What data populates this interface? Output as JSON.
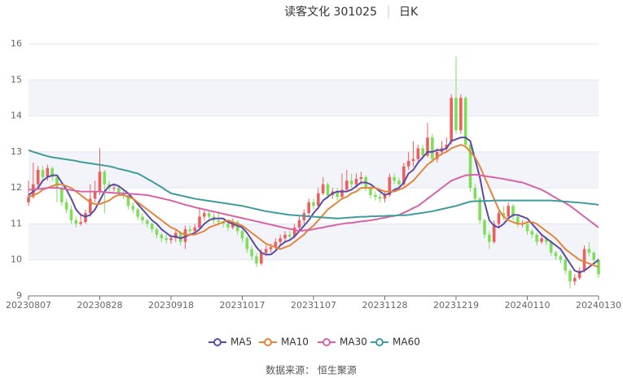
{
  "chart_data": {
    "type": "candlestick",
    "title": "读客文化 301025",
    "subtitle": "日K",
    "source": "数据来源： 恒生聚源",
    "ylim": [
      9,
      16
    ],
    "yticks": [
      9,
      10,
      11,
      12,
      13,
      14,
      15,
      16
    ],
    "up_color": "#ec5f5f",
    "down_color": "#7ddf57",
    "categories": [
      "20230807",
      null,
      null,
      null,
      null,
      null,
      null,
      null,
      null,
      null,
      null,
      null,
      null,
      null,
      null,
      "20230828",
      null,
      null,
      null,
      null,
      null,
      null,
      null,
      null,
      null,
      null,
      null,
      null,
      null,
      null,
      "20230918",
      null,
      null,
      null,
      null,
      null,
      null,
      null,
      null,
      null,
      null,
      null,
      null,
      null,
      null,
      "20231017",
      null,
      null,
      null,
      null,
      null,
      null,
      null,
      null,
      null,
      null,
      null,
      null,
      null,
      null,
      "20231107",
      null,
      null,
      null,
      null,
      null,
      null,
      null,
      null,
      null,
      null,
      null,
      null,
      null,
      null,
      "20231128",
      null,
      null,
      null,
      null,
      null,
      null,
      null,
      null,
      null,
      null,
      null,
      null,
      null,
      null,
      "20231219",
      null,
      null,
      null,
      null,
      null,
      null,
      null,
      null,
      null,
      null,
      null,
      null,
      null,
      null,
      "20240110",
      null,
      null,
      null,
      null,
      null,
      null,
      null,
      null,
      null,
      null,
      null,
      null,
      null,
      null,
      "20240130"
    ],
    "candles": [
      [
        11.6,
        11.75,
        11.5,
        12.2
      ],
      [
        11.75,
        12.1,
        11.7,
        12.7
      ],
      [
        12.1,
        12.5,
        12.0,
        12.6
      ],
      [
        12.5,
        12.3,
        12.2,
        12.6
      ],
      [
        12.3,
        12.55,
        12.2,
        12.65
      ],
      [
        12.55,
        12.3,
        12.2,
        12.6
      ],
      [
        12.3,
        12.0,
        11.6,
        12.35
      ],
      [
        12.0,
        11.6,
        11.5,
        12.05
      ],
      [
        11.6,
        11.4,
        11.3,
        11.7
      ],
      [
        11.4,
        11.1,
        11.0,
        11.5
      ],
      [
        11.1,
        11.0,
        10.9,
        11.2
      ],
      [
        11.0,
        11.05,
        10.95,
        11.3
      ],
      [
        11.05,
        11.3,
        11.0,
        11.4
      ],
      [
        11.3,
        11.7,
        11.2,
        12.1
      ],
      [
        11.7,
        11.9,
        11.6,
        12.2
      ],
      [
        11.9,
        12.45,
        11.8,
        13.1
      ],
      [
        12.45,
        12.1,
        11.3,
        12.5
      ],
      [
        12.1,
        12.0,
        11.9,
        12.2
      ],
      [
        12.0,
        12.0,
        11.9,
        12.1
      ],
      [
        12.0,
        11.85,
        11.8,
        12.05
      ],
      [
        11.85,
        11.8,
        11.7,
        11.95
      ],
      [
        11.8,
        11.5,
        11.4,
        11.85
      ],
      [
        11.5,
        11.4,
        11.3,
        11.6
      ],
      [
        11.4,
        11.2,
        11.1,
        11.45
      ],
      [
        11.2,
        11.1,
        11.0,
        11.3
      ],
      [
        11.1,
        11.0,
        10.9,
        11.15
      ],
      [
        11.0,
        10.85,
        10.75,
        11.05
      ],
      [
        10.85,
        10.7,
        10.6,
        10.9
      ],
      [
        10.7,
        10.6,
        10.5,
        10.75
      ],
      [
        10.6,
        10.55,
        10.45,
        10.7
      ],
      [
        10.55,
        10.6,
        10.45,
        10.7
      ],
      [
        10.6,
        10.75,
        10.5,
        10.85
      ],
      [
        10.75,
        10.5,
        10.4,
        10.8
      ],
      [
        10.5,
        10.85,
        10.3,
        10.95
      ],
      [
        10.85,
        10.8,
        10.7,
        10.95
      ],
      [
        10.8,
        10.9,
        10.75,
        11.0
      ],
      [
        10.9,
        11.2,
        10.85,
        11.45
      ],
      [
        11.2,
        11.3,
        11.1,
        11.4
      ],
      [
        11.3,
        11.2,
        11.05,
        11.35
      ],
      [
        11.2,
        11.1,
        11.0,
        11.3
      ],
      [
        11.1,
        11.05,
        10.95,
        11.35
      ],
      [
        11.05,
        11.0,
        10.9,
        11.1
      ],
      [
        11.0,
        10.9,
        10.8,
        11.05
      ],
      [
        10.9,
        11.05,
        10.85,
        11.15
      ],
      [
        11.05,
        10.8,
        10.7,
        11.1
      ],
      [
        10.8,
        10.6,
        10.5,
        10.85
      ],
      [
        10.6,
        10.3,
        10.2,
        10.65
      ],
      [
        10.3,
        10.1,
        10.0,
        10.4
      ],
      [
        10.1,
        9.9,
        9.8,
        10.2
      ],
      [
        9.9,
        10.2,
        9.85,
        10.3
      ],
      [
        10.2,
        10.3,
        10.1,
        10.4
      ],
      [
        10.3,
        10.35,
        10.2,
        10.45
      ],
      [
        10.35,
        10.5,
        10.3,
        10.6
      ],
      [
        10.5,
        10.6,
        10.4,
        10.7
      ],
      [
        10.6,
        10.7,
        10.5,
        10.8
      ],
      [
        10.7,
        10.65,
        10.55,
        10.8
      ],
      [
        10.65,
        10.9,
        10.6,
        11.0
      ],
      [
        10.9,
        11.1,
        10.8,
        11.2
      ],
      [
        11.1,
        11.3,
        11.0,
        11.4
      ],
      [
        11.3,
        11.6,
        11.2,
        11.7
      ],
      [
        11.6,
        11.5,
        11.4,
        11.7
      ],
      [
        11.5,
        11.85,
        11.4,
        12.0
      ],
      [
        11.85,
        12.1,
        11.8,
        12.3
      ],
      [
        12.1,
        11.8,
        11.7,
        12.15
      ],
      [
        11.8,
        11.9,
        11.7,
        12.0
      ],
      [
        11.9,
        11.75,
        11.65,
        12.0
      ],
      [
        11.75,
        11.95,
        11.7,
        12.4
      ],
      [
        11.95,
        12.2,
        11.9,
        12.5
      ],
      [
        12.2,
        12.1,
        12.0,
        12.4
      ],
      [
        12.1,
        12.25,
        12.0,
        12.4
      ],
      [
        12.25,
        12.3,
        12.1,
        12.45
      ],
      [
        12.3,
        12.0,
        11.9,
        12.35
      ],
      [
        12.0,
        11.8,
        11.7,
        12.05
      ],
      [
        11.8,
        11.75,
        11.65,
        11.9
      ],
      [
        11.75,
        11.7,
        11.6,
        11.85
      ],
      [
        11.7,
        11.8,
        11.6,
        11.9
      ],
      [
        11.8,
        12.3,
        11.75,
        12.4
      ],
      [
        12.3,
        12.2,
        12.1,
        12.4
      ],
      [
        12.2,
        12.1,
        12.0,
        12.3
      ],
      [
        12.1,
        12.6,
        12.05,
        12.7
      ],
      [
        12.6,
        12.75,
        12.5,
        13.0
      ],
      [
        12.75,
        12.8,
        12.6,
        13.3
      ],
      [
        12.8,
        13.1,
        12.7,
        13.2
      ],
      [
        13.1,
        12.9,
        12.8,
        13.2
      ],
      [
        12.9,
        13.4,
        12.85,
        13.8
      ],
      [
        13.4,
        12.8,
        12.7,
        13.5
      ],
      [
        12.8,
        13.0,
        12.7,
        13.1
      ],
      [
        13.0,
        13.1,
        12.9,
        13.3
      ],
      [
        13.1,
        13.2,
        13.0,
        13.4
      ],
      [
        13.3,
        14.5,
        13.2,
        14.6
      ],
      [
        14.5,
        13.6,
        13.5,
        15.65
      ],
      [
        13.6,
        14.5,
        13.5,
        14.6
      ],
      [
        14.5,
        13.2,
        13.1,
        14.55
      ],
      [
        13.2,
        12.0,
        11.9,
        13.3
      ],
      [
        12.0,
        11.7,
        11.6,
        12.1
      ],
      [
        11.7,
        11.1,
        11.0,
        11.75
      ],
      [
        11.1,
        10.7,
        10.6,
        11.15
      ],
      [
        10.7,
        10.5,
        10.3,
        10.8
      ],
      [
        10.5,
        11.0,
        10.45,
        11.1
      ],
      [
        11.0,
        11.3,
        10.9,
        11.4
      ],
      [
        11.3,
        11.2,
        11.1,
        11.5
      ],
      [
        11.2,
        11.5,
        11.15,
        11.6
      ],
      [
        11.5,
        11.2,
        11.1,
        11.55
      ],
      [
        11.2,
        11.0,
        10.9,
        11.25
      ],
      [
        11.0,
        11.0,
        10.9,
        11.1
      ],
      [
        11.0,
        10.8,
        10.7,
        11.05
      ],
      [
        10.8,
        10.7,
        10.6,
        10.85
      ],
      [
        10.7,
        10.5,
        10.4,
        10.75
      ],
      [
        10.5,
        10.6,
        10.45,
        10.7
      ],
      [
        10.6,
        10.5,
        10.4,
        10.65
      ],
      [
        10.5,
        10.2,
        10.1,
        10.55
      ],
      [
        10.2,
        10.1,
        10.0,
        10.25
      ],
      [
        10.1,
        10.0,
        9.9,
        10.15
      ],
      [
        10.0,
        9.7,
        9.6,
        10.05
      ],
      [
        9.7,
        9.4,
        9.2,
        9.75
      ],
      [
        9.4,
        9.5,
        9.3,
        9.6
      ],
      [
        9.5,
        9.7,
        9.45,
        9.8
      ],
      [
        9.7,
        10.3,
        9.65,
        10.4
      ],
      [
        10.3,
        10.2,
        10.1,
        10.5
      ],
      [
        10.2,
        10.0,
        9.9,
        10.25
      ],
      [
        10.0,
        9.6,
        9.5,
        10.05
      ]
    ],
    "series": [
      {
        "name": "MA5",
        "color": "#5e4aa6",
        "values": [
          11.8,
          11.9,
          12.0,
          12.2,
          12.3,
          12.35,
          12.35,
          12.15,
          11.95,
          11.7,
          11.4,
          11.25,
          11.2,
          11.25,
          11.4,
          11.65,
          11.9,
          12.05,
          12.1,
          12.05,
          11.95,
          11.85,
          11.7,
          11.55,
          11.4,
          11.25,
          11.1,
          11.0,
          10.85,
          10.75,
          10.65,
          10.65,
          10.6,
          10.65,
          10.7,
          10.75,
          10.85,
          11.0,
          11.1,
          11.15,
          11.15,
          11.15,
          11.05,
          11.0,
          10.95,
          10.9,
          10.75,
          10.55,
          10.35,
          10.2,
          10.15,
          10.15,
          10.25,
          10.4,
          10.5,
          10.55,
          10.65,
          10.8,
          10.95,
          11.1,
          11.3,
          11.45,
          11.65,
          11.75,
          11.85,
          11.9,
          11.9,
          11.9,
          11.95,
          12.05,
          12.15,
          12.15,
          12.1,
          12.0,
          11.9,
          11.8,
          11.85,
          11.95,
          12.0,
          12.15,
          12.4,
          12.5,
          12.7,
          12.85,
          13.0,
          13.0,
          13.05,
          13.05,
          13.1,
          13.3,
          13.35,
          13.4,
          13.4,
          13.3,
          12.8,
          12.3,
          11.6,
          11.1,
          10.95,
          10.9,
          11.0,
          11.15,
          11.25,
          11.25,
          11.2,
          11.15,
          11.0,
          10.85,
          10.7,
          10.6,
          10.5,
          10.4,
          10.3,
          10.1,
          9.9,
          9.7,
          9.65,
          9.7,
          9.8,
          9.9,
          10.0
        ]
      },
      {
        "name": "MA10",
        "color": "#e5843c",
        "values": [
          11.75,
          11.8,
          11.85,
          11.95,
          12.0,
          12.05,
          12.1,
          12.1,
          12.05,
          12.0,
          11.9,
          11.8,
          11.7,
          11.6,
          11.55,
          11.55,
          11.6,
          11.65,
          11.75,
          11.8,
          11.8,
          11.75,
          11.7,
          11.6,
          11.5,
          11.4,
          11.3,
          11.2,
          11.1,
          11.0,
          10.9,
          10.85,
          10.75,
          10.7,
          10.7,
          10.7,
          10.75,
          10.8,
          10.9,
          10.95,
          11.0,
          11.05,
          11.1,
          11.05,
          11.0,
          10.95,
          10.85,
          10.75,
          10.65,
          10.55,
          10.45,
          10.4,
          10.35,
          10.3,
          10.35,
          10.4,
          10.5,
          10.6,
          10.7,
          10.85,
          10.95,
          11.1,
          11.25,
          11.4,
          11.5,
          11.6,
          11.7,
          11.75,
          11.85,
          11.9,
          12.0,
          12.0,
          12.0,
          12.0,
          11.95,
          11.9,
          11.9,
          11.9,
          11.95,
          12.0,
          12.1,
          12.2,
          12.35,
          12.5,
          12.65,
          12.75,
          12.85,
          12.95,
          13.0,
          13.1,
          13.15,
          13.2,
          13.15,
          13.0,
          12.85,
          12.6,
          12.3,
          12.0,
          11.7,
          11.4,
          11.2,
          11.1,
          11.05,
          11.0,
          11.0,
          11.05,
          11.05,
          11.0,
          10.9,
          10.8,
          10.7,
          10.6,
          10.45,
          10.3,
          10.2,
          10.1,
          10.0,
          9.95,
          9.9,
          9.85,
          9.8
        ]
      },
      {
        "name": "MA30",
        "color": "#d862a8",
        "values": [
          11.95,
          11.95,
          11.97,
          11.98,
          12.0,
          12.0,
          12.0,
          11.98,
          11.96,
          11.94,
          11.92,
          11.9,
          11.9,
          11.9,
          11.9,
          11.9,
          11.88,
          11.87,
          11.86,
          11.85,
          11.85,
          11.84,
          11.83,
          11.82,
          11.81,
          11.8,
          11.77,
          11.74,
          11.71,
          11.68,
          11.65,
          11.61,
          11.57,
          11.53,
          11.5,
          11.46,
          11.43,
          11.4,
          11.37,
          11.34,
          11.31,
          11.28,
          11.25,
          11.22,
          11.19,
          11.16,
          11.13,
          11.1,
          11.07,
          11.04,
          11.01,
          10.98,
          10.95,
          10.92,
          10.89,
          10.86,
          10.83,
          10.8,
          10.82,
          10.83,
          10.85,
          10.88,
          10.9,
          10.93,
          10.95,
          10.98,
          11.0,
          11.02,
          11.03,
          11.05,
          11.07,
          11.08,
          11.1,
          11.12,
          11.15,
          11.17,
          11.2,
          11.22,
          11.25,
          11.31,
          11.37,
          11.44,
          11.5,
          11.6,
          11.7,
          11.8,
          11.9,
          12.0,
          12.1,
          12.2,
          12.25,
          12.3,
          12.35,
          12.36,
          12.37,
          12.35,
          12.33,
          12.31,
          12.29,
          12.27,
          12.25,
          12.22,
          12.2,
          12.17,
          12.15,
          12.1,
          12.05,
          12.0,
          11.95,
          11.88,
          11.8,
          11.72,
          11.65,
          11.58,
          11.5,
          11.4,
          11.3,
          11.2,
          11.1,
          11.0,
          10.9
        ]
      },
      {
        "name": "MA60",
        "color": "#3f9b9c",
        "values": [
          13.05,
          13.0,
          12.96,
          12.92,
          12.88,
          12.85,
          12.83,
          12.81,
          12.79,
          12.77,
          12.75,
          12.72,
          12.7,
          12.68,
          12.66,
          12.64,
          12.62,
          12.6,
          12.57,
          12.53,
          12.5,
          12.47,
          12.43,
          12.4,
          12.33,
          12.25,
          12.18,
          12.1,
          12.02,
          11.93,
          11.85,
          11.82,
          11.79,
          11.76,
          11.73,
          11.7,
          11.68,
          11.66,
          11.64,
          11.62,
          11.6,
          11.58,
          11.56,
          11.54,
          11.52,
          11.5,
          11.47,
          11.44,
          11.41,
          11.38,
          11.35,
          11.33,
          11.31,
          11.29,
          11.27,
          11.25,
          11.24,
          11.23,
          11.22,
          11.21,
          11.2,
          11.19,
          11.18,
          11.17,
          11.16,
          11.15,
          11.16,
          11.17,
          11.18,
          11.19,
          11.2,
          11.2,
          11.21,
          11.21,
          11.22,
          11.22,
          11.23,
          11.23,
          11.24,
          11.24,
          11.25,
          11.27,
          11.29,
          11.31,
          11.33,
          11.35,
          11.38,
          11.41,
          11.44,
          11.47,
          11.5,
          11.54,
          11.58,
          11.62,
          11.63,
          11.63,
          11.64,
          11.64,
          11.65,
          11.65,
          11.65,
          11.65,
          11.65,
          11.65,
          11.65,
          11.65,
          11.65,
          11.65,
          11.65,
          11.65,
          11.65,
          11.64,
          11.63,
          11.62,
          11.61,
          11.6,
          11.59,
          11.58,
          11.56,
          11.55,
          11.53
        ]
      }
    ]
  }
}
